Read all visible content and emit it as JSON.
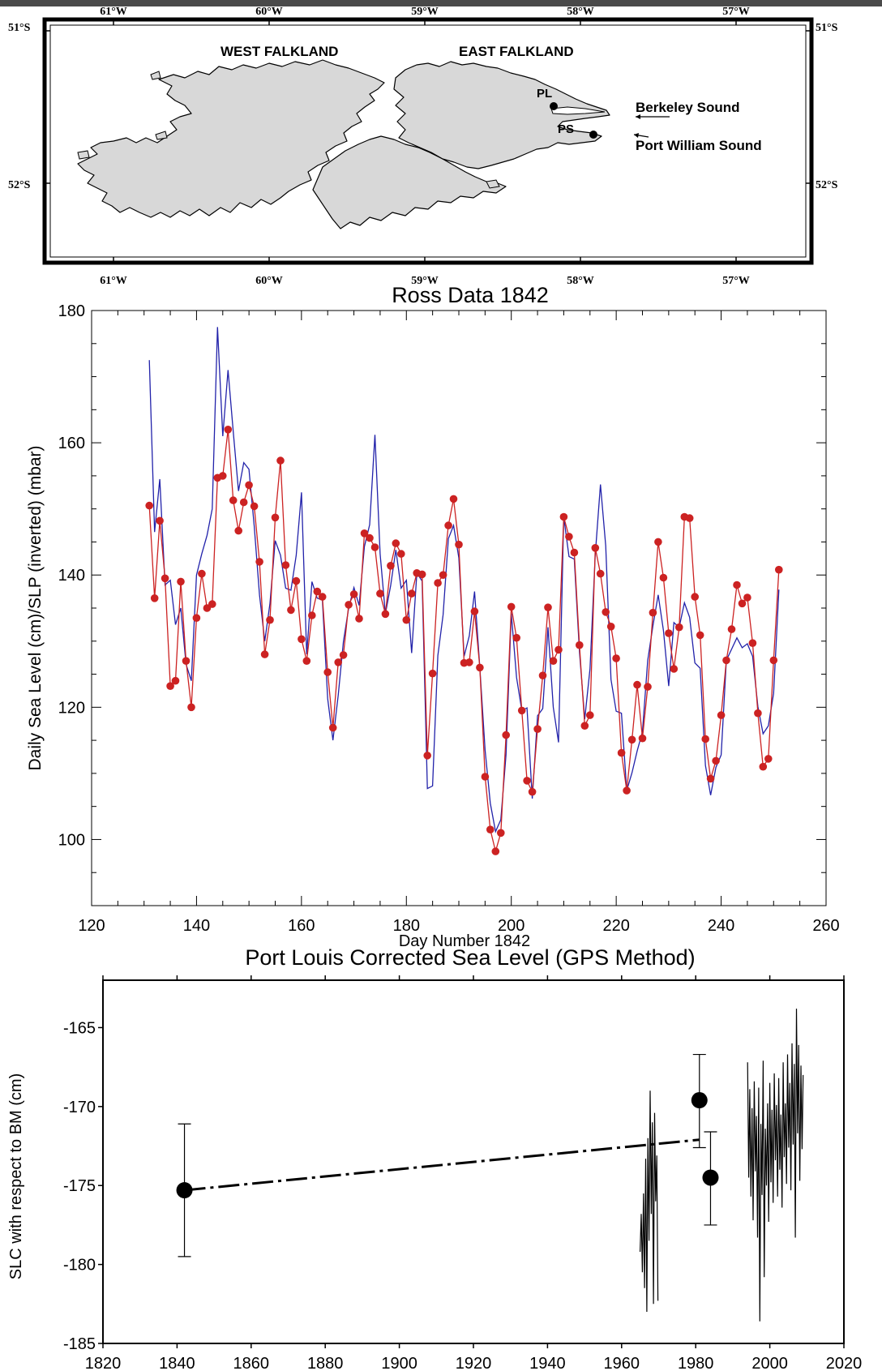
{
  "map": {
    "lon_labels": [
      "61°W",
      "60°W",
      "59°W",
      "58°W",
      "57°W"
    ],
    "lat_labels": [
      "51°S",
      "52°S"
    ],
    "west_label": "WEST FALKLAND",
    "east_label": "EAST FALKLAND",
    "pl_label": "PL",
    "ps_label": "PS",
    "berkeley_label": "Berkeley Sound",
    "portwilliam_label": "Port William Sound",
    "land_color": "#d8d8d8"
  },
  "chart_data": [
    {
      "type": "line",
      "title": "Ross Data 1842",
      "xlabel": "Day Number 1842",
      "ylabel": "Daily Sea Level (cm)/SLP (inverted) (mbar)",
      "xlim": [
        120,
        260
      ],
      "ylim": [
        90,
        180
      ],
      "xticks": [
        120,
        140,
        160,
        180,
        200,
        220,
        240,
        260
      ],
      "yticks": [
        100,
        120,
        140,
        160,
        180
      ],
      "grid": false,
      "series": [
        {
          "color": "#cc2222",
          "marker": "circle",
          "x": [
            131,
            132,
            133,
            134,
            135,
            136,
            137,
            138,
            139,
            140,
            141,
            142,
            143,
            144,
            145,
            146,
            147,
            148,
            149,
            150,
            151,
            152,
            153,
            154,
            155,
            156,
            157,
            158,
            159,
            160,
            161,
            162,
            163,
            164,
            165,
            166,
            167,
            168,
            169,
            170,
            171,
            172,
            173,
            174,
            175,
            176,
            177,
            178,
            179,
            180,
            181,
            182,
            183,
            184,
            185,
            186,
            187,
            188,
            189,
            190,
            191,
            192,
            193,
            194,
            195,
            196,
            197,
            198,
            199,
            200,
            201,
            202,
            203,
            204,
            205,
            206,
            207,
            208,
            209,
            210,
            211,
            212,
            213,
            214,
            215,
            216,
            217,
            218,
            219,
            220,
            221,
            222,
            223,
            224,
            225,
            226,
            227,
            228,
            229,
            230,
            231,
            232,
            233,
            234,
            235,
            236,
            237,
            238,
            239,
            240,
            241,
            242,
            243,
            244,
            245,
            246,
            247,
            248,
            249,
            250,
            251
          ],
          "values": [
            150.5,
            136.5,
            148.2,
            139.5,
            123.2,
            124,
            139,
            127,
            120,
            133.5,
            140.2,
            135,
            135.6,
            154.7,
            155,
            162,
            151.3,
            146.7,
            151,
            153.6,
            150.4,
            142,
            128,
            133.2,
            148.7,
            157.3,
            141.5,
            134.7,
            139.1,
            130.3,
            127,
            133.9,
            137.5,
            136.7,
            125.3,
            116.9,
            126.8,
            127.9,
            135.5,
            137.1,
            133.4,
            146.3,
            145.6,
            144.2,
            137.2,
            134.1,
            141.4,
            144.8,
            143.2,
            133.2,
            137.2,
            140.3,
            140.1,
            112.7,
            125.1,
            138.8,
            140,
            147.5,
            151.5,
            144.6,
            126.7,
            126.8,
            134.5,
            126,
            109.5,
            101.5,
            98.2,
            101,
            115.8,
            135.2,
            130.5,
            119.5,
            108.9,
            107.2,
            116.7,
            124.8,
            135.1,
            127,
            128.7,
            148.8,
            145.8,
            143.4,
            129.4,
            117.2,
            118.8,
            144.1,
            140.2,
            134.4,
            132.2,
            127.4,
            113.1,
            107.4,
            115.1,
            123.4,
            115.3,
            123.1,
            134.3,
            145,
            139.6,
            131.2,
            125.8,
            132.1,
            148.8,
            148.6,
            136.7,
            130.9,
            115.2,
            109.2,
            111.9,
            118.8,
            127.1,
            131.8,
            138.5,
            135.7,
            136.6,
            129.7,
            119.1,
            111,
            112.2,
            127.1,
            140.8
          ]
        },
        {
          "color": "#2222aa",
          "marker": "none",
          "x": [
            131,
            132,
            133,
            134,
            135,
            136,
            137,
            138,
            139,
            140,
            141,
            142,
            143,
            144,
            145,
            146,
            147,
            148,
            149,
            150,
            151,
            152,
            153,
            154,
            155,
            156,
            157,
            158,
            159,
            160,
            161,
            162,
            163,
            164,
            165,
            166,
            167,
            168,
            169,
            170,
            171,
            172,
            173,
            174,
            175,
            176,
            177,
            178,
            179,
            180,
            181,
            182,
            183,
            184,
            185,
            186,
            187,
            188,
            189,
            190,
            191,
            192,
            193,
            194,
            195,
            196,
            197,
            198,
            199,
            200,
            201,
            202,
            203,
            204,
            205,
            206,
            207,
            208,
            209,
            210,
            211,
            212,
            213,
            214,
            215,
            216,
            217,
            218,
            219,
            220,
            221,
            222,
            223,
            224,
            225,
            226,
            227,
            228,
            229,
            230,
            231,
            232,
            233,
            234,
            235,
            236,
            237,
            238,
            239,
            240,
            241,
            242,
            243,
            244,
            245,
            246,
            247,
            248,
            249,
            250,
            251
          ],
          "values": [
            172.5,
            146.5,
            154.5,
            138.5,
            139.2,
            132.5,
            135,
            126.5,
            124,
            140,
            143.2,
            146,
            150,
            177.5,
            161,
            171,
            161.7,
            152.7,
            157,
            156,
            147.4,
            137,
            130,
            135.7,
            145.2,
            143,
            138,
            137.7,
            143,
            152.5,
            128,
            139,
            136.5,
            136.2,
            121.3,
            115,
            121.8,
            129.9,
            135,
            138.1,
            135.4,
            144.3,
            147.6,
            161.2,
            143.2,
            134.1,
            138.4,
            143.8,
            138,
            139.2,
            128.2,
            140.3,
            139.1,
            107.7,
            108.1,
            127.8,
            134,
            145.5,
            147.5,
            142.6,
            127.7,
            130.8,
            137.5,
            126,
            113.5,
            105.5,
            101.2,
            103,
            112.8,
            134.2,
            124.5,
            119.5,
            119.9,
            106.2,
            118.7,
            119.8,
            132.1,
            120,
            114.7,
            148.8,
            142.8,
            142.4,
            128.4,
            118.2,
            125.8,
            143.1,
            153.7,
            144.4,
            124.2,
            119.4,
            119.1,
            107.4,
            110.1,
            113.4,
            116.3,
            127.1,
            132.3,
            137,
            131.6,
            123.2,
            132.8,
            132.1,
            135.8,
            133.6,
            126.7,
            125.9,
            111.2,
            106.7,
            110.9,
            112.8,
            127.1,
            128.8,
            130.5,
            129,
            129.6,
            127.7,
            120.1,
            116,
            117.2,
            122.1,
            137.8
          ]
        }
      ]
    },
    {
      "type": "scatter",
      "title": "Port Louis Corrected Sea Level (GPS Method)",
      "xlabel": "",
      "ylabel": "SLC with respect to BM (cm)",
      "xlim": [
        1820,
        2020
      ],
      "ylim": [
        -185,
        -162
      ],
      "xticks": [
        1820,
        1840,
        1860,
        1880,
        1900,
        1920,
        1940,
        1960,
        1980,
        2000,
        2020
      ],
      "yticks": [
        -165,
        -170,
        -175,
        -180,
        -185
      ],
      "grid": false,
      "points": [
        {
          "x": 1842,
          "y": -175.3,
          "err_low": -179.5,
          "err_high": -171.1
        },
        {
          "x": 1981,
          "y": -169.6,
          "err_low": -172.6,
          "err_high": -166.7
        },
        {
          "x": 1984,
          "y": -174.5,
          "err_low": -177.5,
          "err_high": -171.6
        }
      ],
      "trend_line": {
        "x": [
          1842,
          1981
        ],
        "y": [
          -175.3,
          -172.1
        ]
      },
      "records": [
        {
          "x": [
            1965.0,
            1965.3,
            1965.6,
            1965.9,
            1966.2,
            1966.5,
            1966.8,
            1967.1,
            1967.4,
            1967.7,
            1968.0,
            1968.3,
            1968.6,
            1968.9,
            1969.2,
            1969.5,
            1969.8
          ],
          "y": [
            -179.2,
            -176.8,
            -180.5,
            -175.5,
            -181.5,
            -173.3,
            -183.0,
            -172.0,
            -178.5,
            -169.0,
            -176.8,
            -171.0,
            -182.5,
            -170.4,
            -176.0,
            -173.1,
            -182.3
          ]
        },
        {
          "x": [
            1994.0,
            1994.3,
            1994.6,
            1994.9,
            1995.2,
            1995.5,
            1995.8,
            1996.1,
            1996.4,
            1996.7,
            1997.0,
            1997.3,
            1997.6,
            1997.9,
            1998.2,
            1998.5,
            1998.8,
            1999.1,
            1999.4,
            1999.7,
            2000.0,
            2000.3,
            2000.6,
            2000.9,
            2001.2,
            2001.5,
            2001.8,
            2002.1,
            2002.4,
            2002.7,
            2003.0,
            2003.3,
            2003.6,
            2003.9,
            2004.2,
            2004.5,
            2004.8,
            2005.1,
            2005.4,
            2005.7,
            2006.0,
            2006.3,
            2006.6,
            2006.9,
            2007.2,
            2007.5,
            2007.8,
            2008.1,
            2008.4,
            2008.7,
            2009.0
          ],
          "y": [
            -167.2,
            -174.5,
            -168.9,
            -175.7,
            -170.1,
            -177.2,
            -168.4,
            -174.1,
            -170.6,
            -178.3,
            -168.8,
            -183.6,
            -171.1,
            -175.6,
            -167.1,
            -180.8,
            -171.4,
            -175.0,
            -169.8,
            -177.3,
            -168.5,
            -174.8,
            -170.2,
            -176.1,
            -167.9,
            -173.4,
            -169.9,
            -175.7,
            -168.2,
            -174.0,
            -170.5,
            -176.4,
            -167.2,
            -173.2,
            -169.8,
            -174.9,
            -166.7,
            -172.6,
            -168.5,
            -175.3,
            -166.0,
            -172.4,
            -167.3,
            -178.3,
            -163.8,
            -171.7,
            -166.1,
            -174.7,
            -167.4,
            -172.7,
            -168.0
          ]
        }
      ]
    }
  ]
}
